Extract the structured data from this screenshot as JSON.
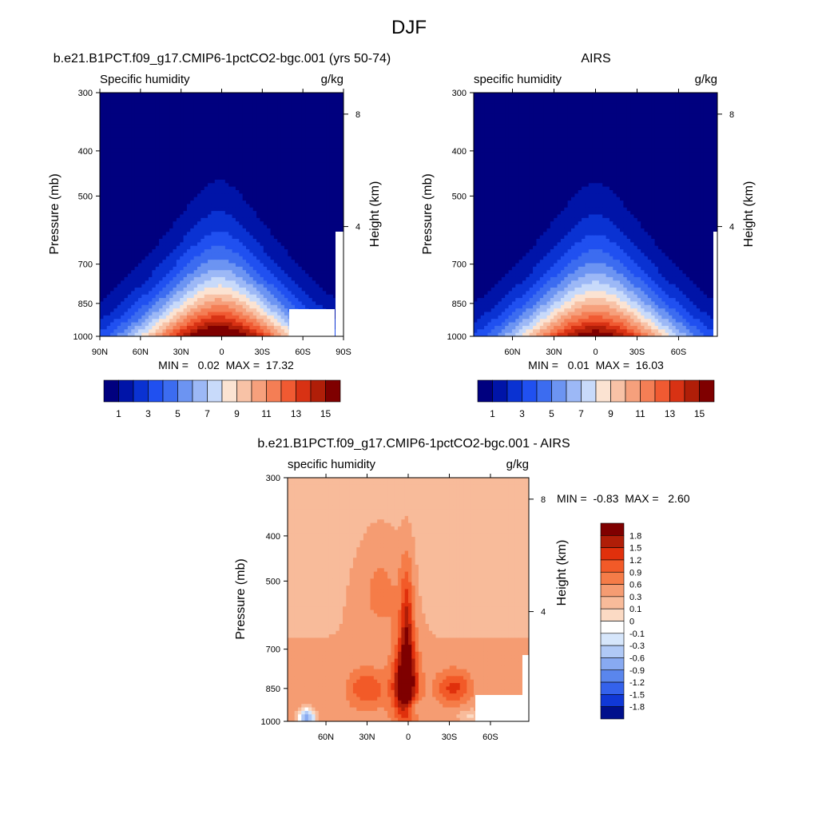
{
  "page": {
    "title": "DJF"
  },
  "panels": [
    {
      "title": "b.e21.B1PCT.f09_g17.CMIP6-1pctCO2-bgc.001 (yrs 50-74)",
      "left_string": "Specific humidity",
      "right_string": "g/kg",
      "ylabel": "Pressure (mb)",
      "ylabel_right": "Height (km)",
      "yticks": [
        "300",
        "400",
        "500",
        "700",
        "850",
        "1000"
      ],
      "hticks": [
        "8",
        "4"
      ],
      "xticks": [
        "90N",
        "60N",
        "30N",
        "0",
        "30S",
        "60S",
        "90S"
      ],
      "minmax": "MIN =   0.02  MAX =  17.32",
      "colorbar_labels": [
        "1",
        "3",
        "5",
        "7",
        "9",
        "11",
        "13",
        "15"
      ]
    },
    {
      "title": "AIRS",
      "left_string": "specific humidity",
      "right_string": "g/kg",
      "ylabel": "Pressure (mb)",
      "ylabel_right": "Height (km)",
      "yticks": [
        "300",
        "400",
        "500",
        "700",
        "850",
        "1000"
      ],
      "hticks": [
        "8",
        "4"
      ],
      "xticks": [
        "60N",
        "30N",
        "0",
        "30S",
        "60S"
      ],
      "minmax": "MIN =   0.01  MAX =  16.03",
      "colorbar_labels": [
        "1",
        "3",
        "5",
        "7",
        "9",
        "11",
        "13",
        "15"
      ]
    },
    {
      "title": "b.e21.B1PCT.f09_g17.CMIP6-1pctCO2-bgc.001 - AIRS",
      "left_string": "specific humidity",
      "right_string": "g/kg",
      "ylabel": "Pressure (mb)",
      "ylabel_right": "Height (km)",
      "yticks": [
        "300",
        "400",
        "500",
        "700",
        "850",
        "1000"
      ],
      "hticks": [
        "8",
        "4"
      ],
      "xticks": [
        "60N",
        "30N",
        "0",
        "30S",
        "60S"
      ],
      "minmax": "MIN =  -0.83  MAX =   2.60",
      "colorbar_labels": [
        "1.8",
        "1.5",
        "1.2",
        "0.9",
        "0.6",
        "0.3",
        "0.1",
        "0",
        "-0.1",
        "-0.3",
        "-0.6",
        "-0.9",
        "-1.2",
        "-1.5",
        "-1.8"
      ]
    }
  ],
  "colors": {
    "abs_levels": [
      "#00007f",
      "#0014a8",
      "#0a32d2",
      "#2050f0",
      "#3c6cf0",
      "#6c94f2",
      "#9cb8f6",
      "#c8dafa",
      "#fbe3d2",
      "#f8c2a6",
      "#f6a07c",
      "#f47e55",
      "#f05a32",
      "#d83214",
      "#b01e08",
      "#7f0000"
    ],
    "diff_levels": [
      "#7f0000",
      "#b01e08",
      "#e0300c",
      "#f25a28",
      "#f57c48",
      "#f59c72",
      "#f8bb9a",
      "#fbdac4",
      "#ffffff",
      "#d6e6fb",
      "#b0c9f6",
      "#88aaf1",
      "#5a86ed",
      "#3462ec",
      "#1038d6",
      "#00108c"
    ]
  },
  "chart_data": [
    {
      "type": "heatmap",
      "title": "b.e21.B1PCT.f09_g17.CMIP6-1pctCO2-bgc.001 (yrs 50-74)",
      "variable": "Specific humidity",
      "units": "g/kg",
      "xlabel": "",
      "ylabel": "Pressure (mb)",
      "xlim": [
        90,
        -90
      ],
      "ylim_pressure_mb": [
        1000,
        300
      ],
      "log_pressure_axis": true,
      "contour_levels": [
        1,
        2,
        3,
        4,
        5,
        6,
        7,
        8,
        9,
        10,
        11,
        12,
        13,
        14,
        15
      ],
      "center_lat": 2,
      "x": [
        90,
        60,
        30,
        0,
        -30,
        -60,
        -90
      ],
      "peak_pressure_mb": 1000,
      "min": 0.02,
      "max": 17.32
    },
    {
      "type": "heatmap",
      "title": "AIRS",
      "variable": "specific humidity",
      "units": "g/kg",
      "xlabel": "",
      "ylabel": "Pressure (mb)",
      "xlim": [
        88,
        -88
      ],
      "ylim_pressure_mb": [
        1000,
        300
      ],
      "log_pressure_axis": true,
      "contour_levels": [
        1,
        2,
        3,
        4,
        5,
        6,
        7,
        8,
        9,
        10,
        11,
        12,
        13,
        14,
        15
      ],
      "center_lat": 0,
      "x": [
        60,
        30,
        0,
        -30,
        -60
      ],
      "peak_pressure_mb": 1000,
      "min": 0.01,
      "max": 16.03
    },
    {
      "type": "heatmap",
      "title": "b.e21.B1PCT.f09_g17.CMIP6-1pctCO2-bgc.001 - AIRS",
      "variable": "specific humidity",
      "units": "g/kg",
      "xlabel": "",
      "ylabel": "Pressure (mb)",
      "xlim": [
        88,
        -88
      ],
      "ylim_pressure_mb": [
        1000,
        300
      ],
      "log_pressure_axis": true,
      "contour_levels": [
        -1.8,
        -1.5,
        -1.2,
        -0.9,
        -0.6,
        -0.3,
        -0.1,
        0,
        0.1,
        0.3,
        0.6,
        0.9,
        1.2,
        1.5,
        1.8
      ],
      "x": [
        60,
        30,
        0,
        -30,
        -60
      ],
      "max_location": {
        "lat": 2,
        "pressure_mb": 850
      },
      "min": -0.83,
      "max": 2.6
    }
  ]
}
